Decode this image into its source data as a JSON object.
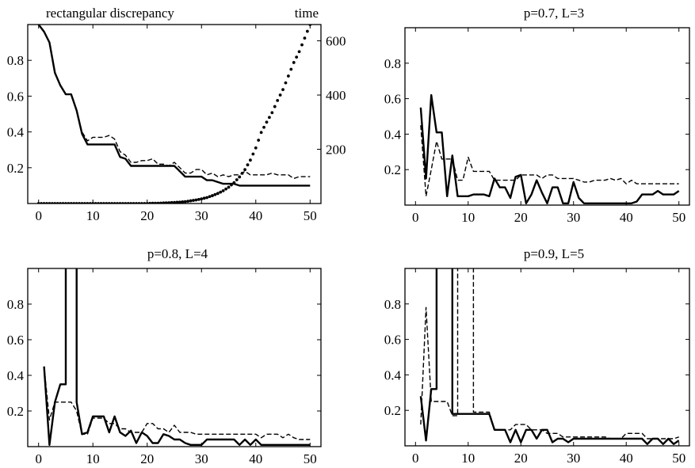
{
  "chart_data": [
    {
      "type": "line",
      "title": "",
      "left_label": "rectangular discrepancy",
      "right_label": "time",
      "xlim": [
        -2,
        52
      ],
      "ylim": [
        0,
        1
      ],
      "y2lim": [
        0,
        660
      ],
      "xticks": [
        0,
        10,
        20,
        30,
        40,
        50
      ],
      "yticks": [
        0.2,
        0.4,
        0.6,
        0.8
      ],
      "y2ticks": [
        200,
        400,
        600
      ],
      "series": [
        {
          "style": "solid",
          "x": [
            0,
            1,
            2,
            3,
            4,
            5,
            6,
            7,
            8,
            9,
            10,
            11,
            12,
            13,
            14,
            15,
            16,
            17,
            18,
            19,
            20,
            21,
            22,
            23,
            24,
            25,
            26,
            27,
            28,
            29,
            30,
            31,
            32,
            33,
            34,
            35,
            36,
            37,
            38,
            39,
            40,
            41,
            42,
            43,
            44,
            45,
            46,
            47,
            48,
            49,
            50
          ],
          "y": [
            1.0,
            0.96,
            0.9,
            0.73,
            0.66,
            0.61,
            0.61,
            0.52,
            0.39,
            0.33,
            0.33,
            0.33,
            0.33,
            0.33,
            0.33,
            0.26,
            0.25,
            0.21,
            0.21,
            0.21,
            0.21,
            0.21,
            0.21,
            0.21,
            0.21,
            0.21,
            0.18,
            0.15,
            0.15,
            0.15,
            0.15,
            0.13,
            0.13,
            0.12,
            0.11,
            0.11,
            0.11,
            0.1,
            0.1,
            0.1,
            0.1,
            0.1,
            0.1,
            0.1,
            0.1,
            0.1,
            0.1,
            0.1,
            0.1,
            0.1,
            0.1
          ]
        },
        {
          "style": "dashed",
          "x": [
            0,
            1,
            2,
            3,
            4,
            5,
            6,
            7,
            8,
            9,
            10,
            11,
            12,
            13,
            14,
            15,
            16,
            17,
            18,
            19,
            20,
            21,
            22,
            23,
            24,
            25,
            26,
            27,
            28,
            29,
            30,
            31,
            32,
            33,
            34,
            35,
            36,
            37,
            38,
            39,
            40,
            41,
            42,
            43,
            44,
            45,
            46,
            47,
            48,
            49,
            50
          ],
          "y": [
            1.0,
            0.96,
            0.9,
            0.73,
            0.66,
            0.61,
            0.61,
            0.52,
            0.4,
            0.35,
            0.37,
            0.37,
            0.37,
            0.38,
            0.36,
            0.29,
            0.27,
            0.23,
            0.23,
            0.24,
            0.24,
            0.25,
            0.22,
            0.22,
            0.21,
            0.23,
            0.2,
            0.17,
            0.17,
            0.19,
            0.19,
            0.16,
            0.17,
            0.15,
            0.16,
            0.15,
            0.16,
            0.16,
            0.18,
            0.16,
            0.16,
            0.16,
            0.16,
            0.17,
            0.16,
            0.16,
            0.16,
            0.14,
            0.15,
            0.15,
            0.15
          ]
        },
        {
          "style": "dotted",
          "axis": "right",
          "x": [
            0,
            1,
            2,
            3,
            4,
            5,
            6,
            7,
            8,
            9,
            10,
            11,
            12,
            13,
            14,
            15,
            16,
            17,
            18,
            19,
            20,
            21,
            22,
            23,
            24,
            25,
            26,
            27,
            28,
            29,
            30,
            31,
            32,
            33,
            34,
            35,
            36,
            37,
            38,
            39,
            40,
            41,
            42,
            43,
            44,
            45,
            46,
            47,
            48,
            49,
            50
          ],
          "y": [
            0,
            0,
            0,
            0,
            0,
            0,
            0,
            0,
            0,
            0,
            0,
            0,
            0,
            0,
            0,
            0,
            0,
            0,
            0,
            0,
            0,
            1,
            1,
            2,
            3,
            4,
            5,
            7,
            10,
            13,
            17,
            22,
            29,
            37,
            47,
            60,
            77,
            98,
            125,
            160,
            205,
            262,
            300,
            335,
            380,
            420,
            470,
            520,
            560,
            610,
            660
          ]
        }
      ]
    },
    {
      "type": "line",
      "title": "p=0.7, L=3",
      "xlim": [
        -2,
        52
      ],
      "ylim": [
        0,
        1
      ],
      "xticks": [
        0,
        10,
        20,
        30,
        40,
        50
      ],
      "yticks": [
        0.2,
        0.4,
        0.6,
        0.8
      ],
      "series": [
        {
          "style": "solid",
          "x": [
            1,
            2,
            3,
            4,
            5,
            6,
            7,
            8,
            9,
            10,
            11,
            12,
            13,
            14,
            15,
            16,
            17,
            18,
            19,
            20,
            21,
            22,
            23,
            24,
            25,
            26,
            27,
            28,
            29,
            30,
            31,
            32,
            33,
            34,
            35,
            36,
            37,
            38,
            39,
            40,
            41,
            42,
            43,
            44,
            45,
            46,
            47,
            48,
            49,
            50
          ],
          "y": [
            0.55,
            0.15,
            0.62,
            0.41,
            0.41,
            0.05,
            0.28,
            0.05,
            0.05,
            0.05,
            0.06,
            0.06,
            0.06,
            0.05,
            0.15,
            0.1,
            0.1,
            0.04,
            0.16,
            0.17,
            0.01,
            0.06,
            0.14,
            0.07,
            0.01,
            0.1,
            0.1,
            0.01,
            0.01,
            0.13,
            0.04,
            0.01,
            0.01,
            0.01,
            0.01,
            0.01,
            0.01,
            0.01,
            0.01,
            0.01,
            0.01,
            0.02,
            0.06,
            0.06,
            0.06,
            0.08,
            0.06,
            0.06,
            0.06,
            0.08
          ]
        },
        {
          "style": "dashed",
          "x": [
            1,
            2,
            3,
            4,
            5,
            6,
            7,
            8,
            9,
            10,
            11,
            12,
            13,
            14,
            15,
            16,
            17,
            18,
            19,
            20,
            21,
            22,
            23,
            24,
            25,
            26,
            27,
            28,
            29,
            30,
            31,
            32,
            33,
            34,
            35,
            36,
            37,
            38,
            39,
            40,
            41,
            42,
            43,
            44,
            45,
            46,
            47,
            48,
            49,
            50
          ],
          "y": [
            0.45,
            0.05,
            0.2,
            0.36,
            0.26,
            0.26,
            0.26,
            0.14,
            0.14,
            0.27,
            0.19,
            0.19,
            0.19,
            0.19,
            0.14,
            0.14,
            0.14,
            0.14,
            0.14,
            0.17,
            0.17,
            0.17,
            0.17,
            0.15,
            0.17,
            0.17,
            0.15,
            0.15,
            0.15,
            0.15,
            0.14,
            0.13,
            0.13,
            0.14,
            0.14,
            0.14,
            0.15,
            0.14,
            0.15,
            0.12,
            0.14,
            0.12,
            0.12,
            0.12,
            0.12,
            0.12,
            0.12,
            0.12,
            0.12,
            0.12
          ]
        }
      ]
    },
    {
      "type": "line",
      "title": "p=0.8, L=4",
      "xlim": [
        -2,
        52
      ],
      "ylim": [
        0,
        1
      ],
      "xticks": [
        0,
        10,
        20,
        30,
        40,
        50
      ],
      "yticks": [
        0.2,
        0.4,
        0.6,
        0.8
      ],
      "series": [
        {
          "style": "solid",
          "x": [
            1,
            2,
            3,
            4,
            5,
            5,
            6,
            7,
            7,
            8,
            9,
            10,
            11,
            12,
            13,
            14,
            15,
            16,
            17,
            18,
            19,
            20,
            21,
            22,
            23,
            24,
            25,
            26,
            27,
            28,
            29,
            30,
            31,
            32,
            33,
            34,
            35,
            36,
            37,
            38,
            39,
            40,
            41,
            42,
            43,
            44,
            45,
            46,
            47,
            48,
            49,
            50
          ],
          "y": [
            0.45,
            0.01,
            0.25,
            0.35,
            0.35,
            1.05,
            1.05,
            1.05,
            0.25,
            0.07,
            0.08,
            0.17,
            0.17,
            0.17,
            0.08,
            0.17,
            0.08,
            0.06,
            0.09,
            0.02,
            0.08,
            0.06,
            0.02,
            0.02,
            0.07,
            0.06,
            0.04,
            0.04,
            0.02,
            0.01,
            0.01,
            0.01,
            0.04,
            0.04,
            0.04,
            0.04,
            0.04,
            0.04,
            0.01,
            0.04,
            0.01,
            0.04,
            0.01,
            0.01,
            0.01,
            0.01,
            0.01,
            0.01,
            0.01,
            0.01,
            0.01,
            0.01
          ]
        },
        {
          "style": "dashed",
          "x": [
            1,
            2,
            3,
            4,
            5,
            6,
            7,
            8,
            9,
            10,
            11,
            12,
            13,
            14,
            15,
            16,
            17,
            18,
            19,
            20,
            21,
            22,
            23,
            24,
            25,
            26,
            27,
            28,
            29,
            30,
            31,
            32,
            33,
            34,
            35,
            36,
            37,
            38,
            39,
            40,
            41,
            42,
            43,
            44,
            45,
            46,
            47,
            48,
            49,
            50
          ],
          "y": [
            0.45,
            0.15,
            0.25,
            0.25,
            0.25,
            0.25,
            0.2,
            0.07,
            0.07,
            0.16,
            0.16,
            0.16,
            0.13,
            0.13,
            0.1,
            0.1,
            0.08,
            0.08,
            0.08,
            0.13,
            0.13,
            0.1,
            0.1,
            0.08,
            0.12,
            0.08,
            0.08,
            0.08,
            0.07,
            0.07,
            0.07,
            0.07,
            0.07,
            0.07,
            0.07,
            0.07,
            0.07,
            0.07,
            0.07,
            0.07,
            0.05,
            0.07,
            0.07,
            0.07,
            0.05,
            0.07,
            0.05,
            0.04,
            0.04,
            0.04
          ]
        }
      ]
    },
    {
      "type": "line",
      "title": "p=0.9, L=5",
      "xlim": [
        -2,
        52
      ],
      "ylim": [
        0,
        1
      ],
      "xticks": [
        0,
        10,
        20,
        30,
        40,
        50
      ],
      "yticks": [
        0.2,
        0.4,
        0.6,
        0.8
      ],
      "series": [
        {
          "style": "solid",
          "x": [
            1,
            2,
            3,
            4,
            4,
            5,
            6,
            7,
            7,
            8,
            9,
            10,
            11,
            12,
            13,
            14,
            15,
            16,
            17,
            18,
            19,
            20,
            21,
            22,
            23,
            24,
            25,
            26,
            27,
            28,
            29,
            30,
            31,
            32,
            33,
            34,
            35,
            36,
            37,
            38,
            39,
            40,
            41,
            42,
            43,
            44,
            45,
            46,
            47,
            48,
            49,
            50
          ],
          "y": [
            0.28,
            0.03,
            0.32,
            0.32,
            1.05,
            1.05,
            1.05,
            1.05,
            0.18,
            0.18,
            0.18,
            0.18,
            0.18,
            0.18,
            0.18,
            0.18,
            0.09,
            0.09,
            0.09,
            0.02,
            0.09,
            0.02,
            0.09,
            0.09,
            0.04,
            0.09,
            0.09,
            0.02,
            0.04,
            0.04,
            0.02,
            0.04,
            0.04,
            0.04,
            0.04,
            0.04,
            0.04,
            0.04,
            0.04,
            0.04,
            0.04,
            0.04,
            0.04,
            0.04,
            0.04,
            0.01,
            0.04,
            0.04,
            0.01,
            0.04,
            0.01,
            0.03
          ]
        },
        {
          "style": "dashed",
          "x": [
            1,
            2,
            3,
            4,
            5,
            6,
            7,
            8,
            8,
            9,
            10,
            11,
            11,
            12,
            13,
            14,
            15,
            16,
            17,
            18,
            19,
            20,
            21,
            22,
            23,
            24,
            25,
            26,
            27,
            28,
            29,
            30,
            31,
            32,
            33,
            34,
            35,
            36,
            37,
            38,
            39,
            40,
            41,
            42,
            43,
            44,
            45,
            46,
            47,
            48,
            49,
            50
          ],
          "y": [
            0.12,
            0.78,
            0.25,
            0.25,
            0.25,
            0.25,
            0.17,
            0.17,
            1.05,
            1.05,
            1.05,
            1.05,
            0.19,
            0.19,
            0.19,
            0.19,
            0.09,
            0.09,
            0.09,
            0.09,
            0.12,
            0.12,
            0.12,
            0.09,
            0.09,
            0.09,
            0.07,
            0.07,
            0.07,
            0.05,
            0.05,
            0.05,
            0.05,
            0.05,
            0.05,
            0.05,
            0.05,
            0.05,
            0.04,
            0.04,
            0.04,
            0.07,
            0.07,
            0.07,
            0.07,
            0.04,
            0.04,
            0.04,
            0.04,
            0.04,
            0.04,
            0.05
          ]
        }
      ]
    }
  ]
}
